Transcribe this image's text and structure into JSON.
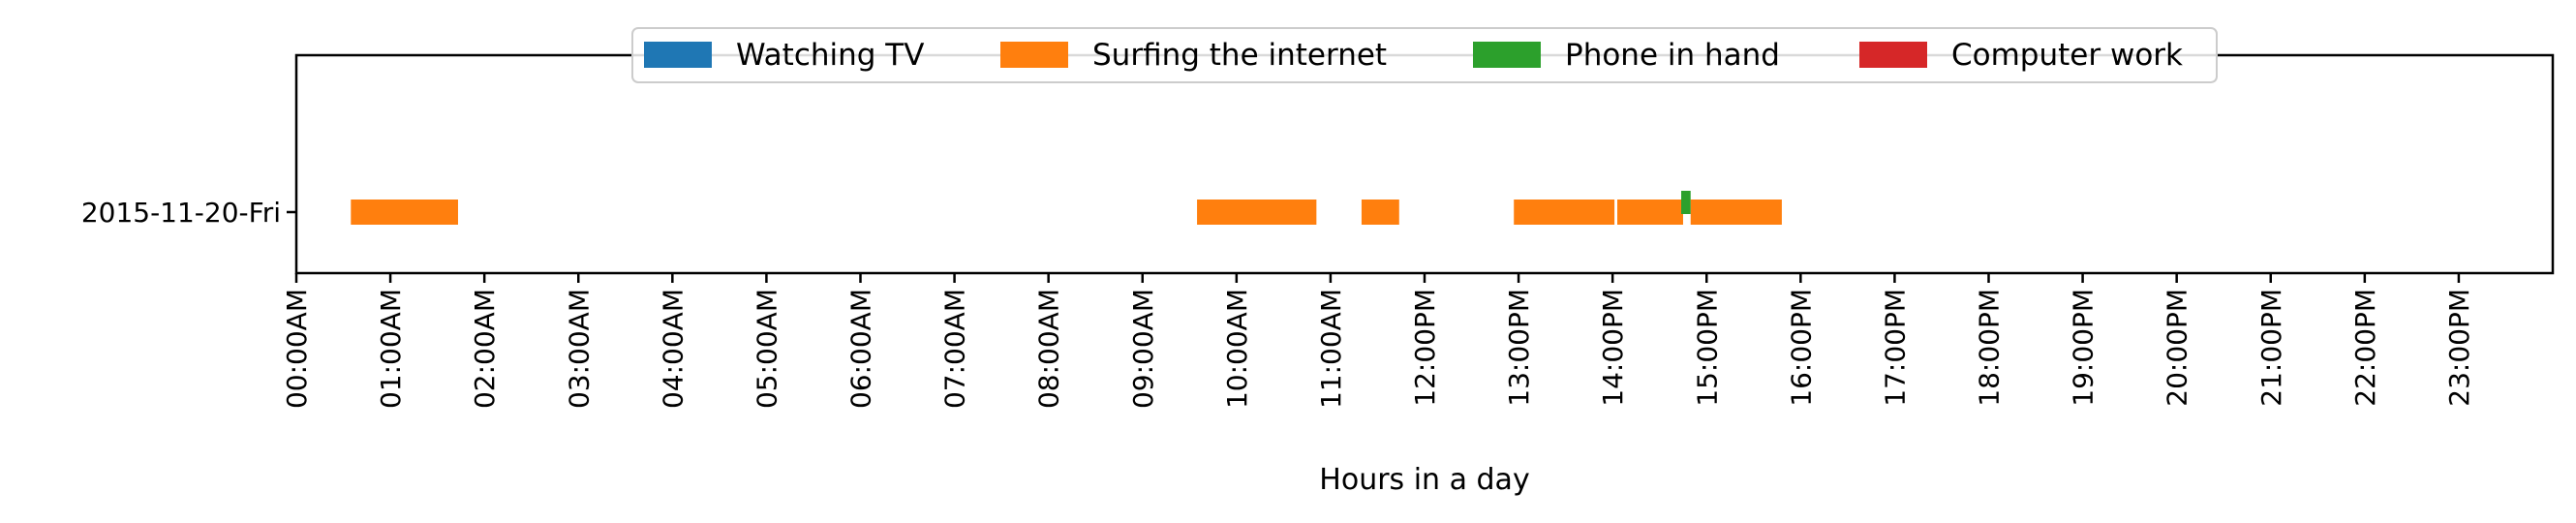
{
  "chart_data": {
    "type": "timeline",
    "xlabel": "Hours in a day",
    "xlim": [
      0,
      24
    ],
    "x_ticks": [
      "00:00AM",
      "01:00AM",
      "02:00AM",
      "03:00AM",
      "04:00AM",
      "05:00AM",
      "06:00AM",
      "07:00AM",
      "08:00AM",
      "09:00AM",
      "10:00AM",
      "11:00AM",
      "12:00PM",
      "13:00PM",
      "14:00PM",
      "15:00PM",
      "16:00PM",
      "17:00PM",
      "18:00PM",
      "19:00PM",
      "20:00PM",
      "21:00PM",
      "22:00PM",
      "23:00PM"
    ],
    "y_categories": [
      "2015-11-20-Fri"
    ],
    "grid": false,
    "legend_position": "top-center",
    "legend": [
      {
        "name": "Watching TV",
        "color": "#1f77b4"
      },
      {
        "name": "Surfing the internet",
        "color": "#ff7f0e"
      },
      {
        "name": "Phone in hand",
        "color": "#2ca02c"
      },
      {
        "name": "Computer work",
        "color": "#d62728"
      }
    ],
    "segments": [
      {
        "day": "2015-11-20-Fri",
        "activity": "Surfing the internet",
        "start": 0.58,
        "end": 1.72
      },
      {
        "day": "2015-11-20-Fri",
        "activity": "Surfing the internet",
        "start": 9.58,
        "end": 10.85
      },
      {
        "day": "2015-11-20-Fri",
        "activity": "Surfing the internet",
        "start": 11.33,
        "end": 11.73
      },
      {
        "day": "2015-11-20-Fri",
        "activity": "Surfing the internet",
        "start": 12.95,
        "end": 14.02
      },
      {
        "day": "2015-11-20-Fri",
        "activity": "Surfing the internet",
        "start": 14.05,
        "end": 14.75
      },
      {
        "day": "2015-11-20-Fri",
        "activity": "Surfing the internet",
        "start": 14.83,
        "end": 15.8
      },
      {
        "day": "2015-11-20-Fri",
        "activity": "Phone in hand",
        "start": 14.73,
        "end": 14.83
      }
    ]
  }
}
